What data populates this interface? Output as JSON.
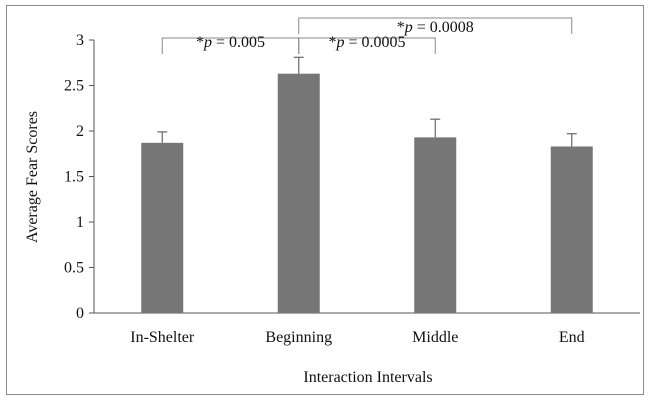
{
  "chart_data": {
    "type": "bar",
    "title": "",
    "xlabel": "Interaction Intervals",
    "ylabel": "Average Fear Scores",
    "categories": [
      "In-Shelter",
      "Beginning",
      "Middle",
      "End"
    ],
    "values": [
      1.87,
      2.63,
      1.93,
      1.83
    ],
    "error_upper": [
      0.12,
      0.18,
      0.2,
      0.14
    ],
    "ylim": [
      0,
      3
    ],
    "yticks": [
      0,
      0.5,
      1,
      1.5,
      2,
      2.5,
      3
    ],
    "ytick_labels": [
      "0",
      "0.5",
      "1",
      "1.5",
      "2",
      "2.5",
      "3"
    ],
    "grid": false,
    "legend": "none",
    "bar_color": "#767676",
    "significance": [
      {
        "from": 0,
        "to": 1,
        "level": 0
      },
      {
        "from": 1,
        "to": 2,
        "level": 0
      },
      {
        "from": 1,
        "to": 3,
        "level": 1
      }
    ],
    "significance_labels": [
      {
        "prefix": "*",
        "italic": "p",
        "suffix": " = 0.005"
      },
      {
        "prefix": "*",
        "italic": "p",
        "suffix": " = 0.0005"
      },
      {
        "prefix": "*",
        "italic": "p",
        "suffix": " = 0.0008"
      }
    ]
  }
}
